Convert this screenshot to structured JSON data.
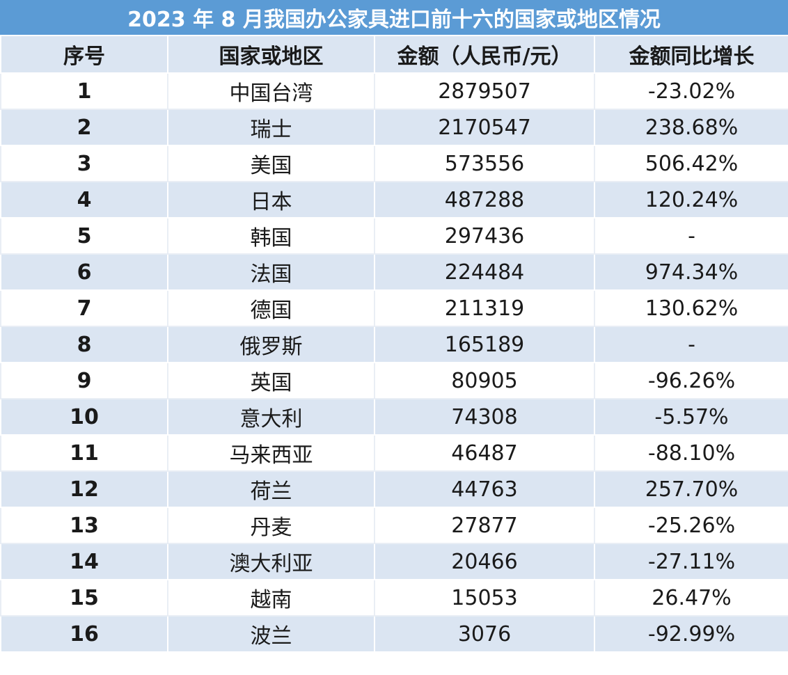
{
  "title": "2023 年 8 月我国办公家具进口前十六的国家或地区情况",
  "table": {
    "headers": [
      "序号",
      "国家或地区",
      "金额（人民币/元）",
      "金额同比增长"
    ],
    "rows": [
      {
        "index": "1",
        "region": "中国台湾",
        "amount": "2879507",
        "growth": "-23.02%"
      },
      {
        "index": "2",
        "region": "瑞士",
        "amount": "2170547",
        "growth": "238.68%"
      },
      {
        "index": "3",
        "region": "美国",
        "amount": "573556",
        "growth": "506.42%"
      },
      {
        "index": "4",
        "region": "日本",
        "amount": "487288",
        "growth": "120.24%"
      },
      {
        "index": "5",
        "region": "韩国",
        "amount": "297436",
        "growth": "-"
      },
      {
        "index": "6",
        "region": "法国",
        "amount": "224484",
        "growth": "974.34%"
      },
      {
        "index": "7",
        "region": "德国",
        "amount": "211319",
        "growth": "130.62%"
      },
      {
        "index": "8",
        "region": "俄罗斯",
        "amount": "165189",
        "growth": "-"
      },
      {
        "index": "9",
        "region": "英国",
        "amount": "80905",
        "growth": "-96.26%"
      },
      {
        "index": "10",
        "region": "意大利",
        "amount": "74308",
        "growth": "-5.57%"
      },
      {
        "index": "11",
        "region": "马来西亚",
        "amount": "46487",
        "growth": "-88.10%"
      },
      {
        "index": "12",
        "region": "荷兰",
        "amount": "44763",
        "growth": "257.70%"
      },
      {
        "index": "13",
        "region": "丹麦",
        "amount": "27877",
        "growth": "-25.26%"
      },
      {
        "index": "14",
        "region": "澳大利亚",
        "amount": "20466",
        "growth": "-27.11%"
      },
      {
        "index": "15",
        "region": "越南",
        "amount": "15053",
        "growth": "26.47%"
      },
      {
        "index": "16",
        "region": "波兰",
        "amount": "3076",
        "growth": "-92.99%"
      }
    ]
  },
  "colors": {
    "title_background": "#5b9bd5",
    "title_text": "#ffffff",
    "stripe": "#dbe5f2",
    "row": "#ffffff",
    "text": "#1a1a1a"
  }
}
